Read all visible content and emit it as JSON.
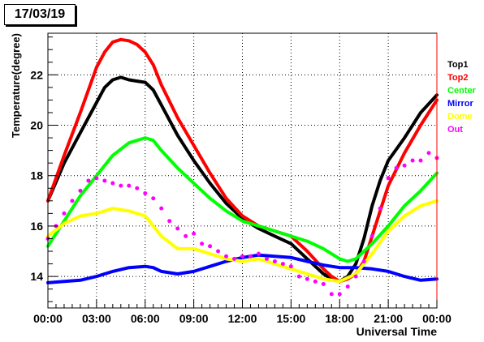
{
  "header": {
    "date_label": "17/03/19"
  },
  "chart_data": {
    "type": "line",
    "title": "",
    "xlabel": "Universal Time",
    "ylabel": "Temperature(degree)",
    "xlim": [
      0,
      24
    ],
    "ylim": [
      12.75,
      23.65
    ],
    "grid": true,
    "legend_position": "right",
    "x_ticks": [
      {
        "value": 0,
        "label": "00:00"
      },
      {
        "value": 3,
        "label": "03:00"
      },
      {
        "value": 6,
        "label": "06:00"
      },
      {
        "value": 9,
        "label": "09:00"
      },
      {
        "value": 12,
        "label": "12:00"
      },
      {
        "value": 15,
        "label": "15:00"
      },
      {
        "value": 18,
        "label": "18:00"
      },
      {
        "value": 21,
        "label": "21:00"
      },
      {
        "value": 24,
        "label": "00:00"
      }
    ],
    "y_ticks": [
      {
        "value": 14,
        "label": "14"
      },
      {
        "value": 16,
        "label": "16"
      },
      {
        "value": 18,
        "label": "18"
      },
      {
        "value": 20,
        "label": "20"
      },
      {
        "value": 22,
        "label": "22"
      }
    ],
    "series": [
      {
        "name": "Top1",
        "color": "#000000",
        "style": "line",
        "x": [
          0,
          1,
          2,
          3,
          3.5,
          4,
          4.5,
          5,
          5.5,
          6,
          6.5,
          7,
          8,
          9,
          10,
          11,
          12,
          13,
          14,
          15,
          16,
          17,
          17.5,
          18,
          18.5,
          19,
          19.5,
          20,
          20.5,
          21,
          22,
          23,
          24
        ],
        "y": [
          17.0,
          18.5,
          19.7,
          20.9,
          21.5,
          21.8,
          21.9,
          21.8,
          21.75,
          21.7,
          21.4,
          20.8,
          19.6,
          18.6,
          17.7,
          16.9,
          16.3,
          15.9,
          15.6,
          15.3,
          14.7,
          14.1,
          13.9,
          13.8,
          14.0,
          14.5,
          15.5,
          16.8,
          17.8,
          18.6,
          19.5,
          20.5,
          21.2
        ]
      },
      {
        "name": "Top2",
        "color": "#ff0000",
        "style": "line",
        "x": [
          0,
          1,
          2,
          3,
          3.5,
          4,
          4.5,
          5,
          5.5,
          6,
          6.5,
          7,
          8,
          9,
          10,
          11,
          12,
          13,
          14,
          15,
          16,
          17,
          17.5,
          18,
          18.5,
          19,
          19.5,
          20,
          20.5,
          21,
          22,
          23,
          24
        ],
        "y": [
          17.0,
          18.8,
          20.5,
          22.3,
          22.9,
          23.3,
          23.4,
          23.35,
          23.2,
          22.9,
          22.4,
          21.6,
          20.3,
          19.2,
          18.1,
          17.1,
          16.4,
          16.0,
          15.8,
          15.6,
          15.0,
          14.3,
          14.0,
          13.8,
          13.9,
          14.1,
          14.6,
          15.6,
          16.6,
          17.6,
          18.9,
          20.0,
          21.0
        ]
      },
      {
        "name": "Center",
        "color": "#00ff00",
        "style": "line",
        "x": [
          0,
          1,
          2,
          3,
          4,
          5,
          6,
          6.5,
          7,
          8,
          9,
          10,
          11,
          12,
          13,
          14,
          15,
          16,
          17,
          18,
          18.5,
          19,
          20,
          21,
          22,
          23,
          24
        ],
        "y": [
          15.2,
          16.2,
          17.2,
          18.0,
          18.8,
          19.3,
          19.5,
          19.4,
          19.0,
          18.3,
          17.7,
          17.1,
          16.6,
          16.2,
          16.0,
          15.8,
          15.6,
          15.4,
          15.1,
          14.7,
          14.6,
          14.7,
          15.3,
          16.0,
          16.8,
          17.4,
          18.1
        ]
      },
      {
        "name": "Mirror",
        "color": "#0000ff",
        "style": "line",
        "x": [
          0,
          1,
          2,
          3,
          4,
          5,
          6,
          6.5,
          7,
          8,
          9,
          10,
          11,
          12,
          13,
          14,
          15,
          16,
          17,
          18,
          19,
          20,
          21,
          22,
          23,
          24
        ],
        "y": [
          13.75,
          13.8,
          13.85,
          14.0,
          14.2,
          14.35,
          14.4,
          14.35,
          14.2,
          14.1,
          14.2,
          14.4,
          14.6,
          14.75,
          14.85,
          14.8,
          14.75,
          14.6,
          14.45,
          14.35,
          14.35,
          14.3,
          14.2,
          14.0,
          13.85,
          13.9
        ]
      },
      {
        "name": "Dome",
        "color": "#ffff00",
        "style": "line",
        "x": [
          0,
          1,
          2,
          3,
          4,
          5,
          6,
          7,
          8,
          9,
          10,
          11,
          12,
          13,
          14,
          15,
          16,
          17,
          18,
          19,
          20,
          21,
          22,
          23,
          24
        ],
        "y": [
          15.6,
          16.1,
          16.4,
          16.5,
          16.7,
          16.6,
          16.4,
          15.6,
          15.1,
          15.1,
          14.9,
          14.7,
          14.6,
          14.7,
          14.5,
          14.3,
          14.1,
          13.9,
          13.8,
          14.1,
          14.9,
          15.8,
          16.4,
          16.8,
          17.0
        ]
      },
      {
        "name": "Out",
        "color": "#ff00ff",
        "style": "scatter",
        "x": [
          0,
          0.5,
          1,
          1.5,
          2,
          2.5,
          3,
          3.5,
          4,
          4.5,
          5,
          5.5,
          6,
          6.5,
          7,
          7.5,
          8,
          8.5,
          9,
          9.5,
          10,
          10.5,
          11,
          11.5,
          12,
          12.5,
          13,
          13.5,
          14,
          14.5,
          15,
          15.5,
          16,
          16.5,
          17,
          17.5,
          18,
          18.5,
          19,
          19.5,
          20,
          20.5,
          21,
          21.5,
          22,
          22.5,
          23,
          23.5,
          24
        ],
        "y": [
          15.5,
          16.0,
          16.5,
          17.0,
          17.4,
          17.8,
          17.9,
          17.8,
          17.7,
          17.6,
          17.6,
          17.5,
          17.3,
          17.1,
          16.7,
          16.2,
          15.9,
          15.6,
          15.7,
          15.3,
          15.2,
          15.0,
          14.8,
          14.7,
          14.8,
          14.8,
          14.9,
          14.7,
          14.6,
          14.5,
          14.4,
          14.0,
          13.9,
          13.8,
          13.7,
          13.3,
          13.3,
          13.6,
          14.0,
          14.6,
          15.6,
          16.7,
          17.9,
          18.3,
          18.4,
          18.6,
          18.6,
          18.9,
          18.7
        ]
      }
    ]
  }
}
